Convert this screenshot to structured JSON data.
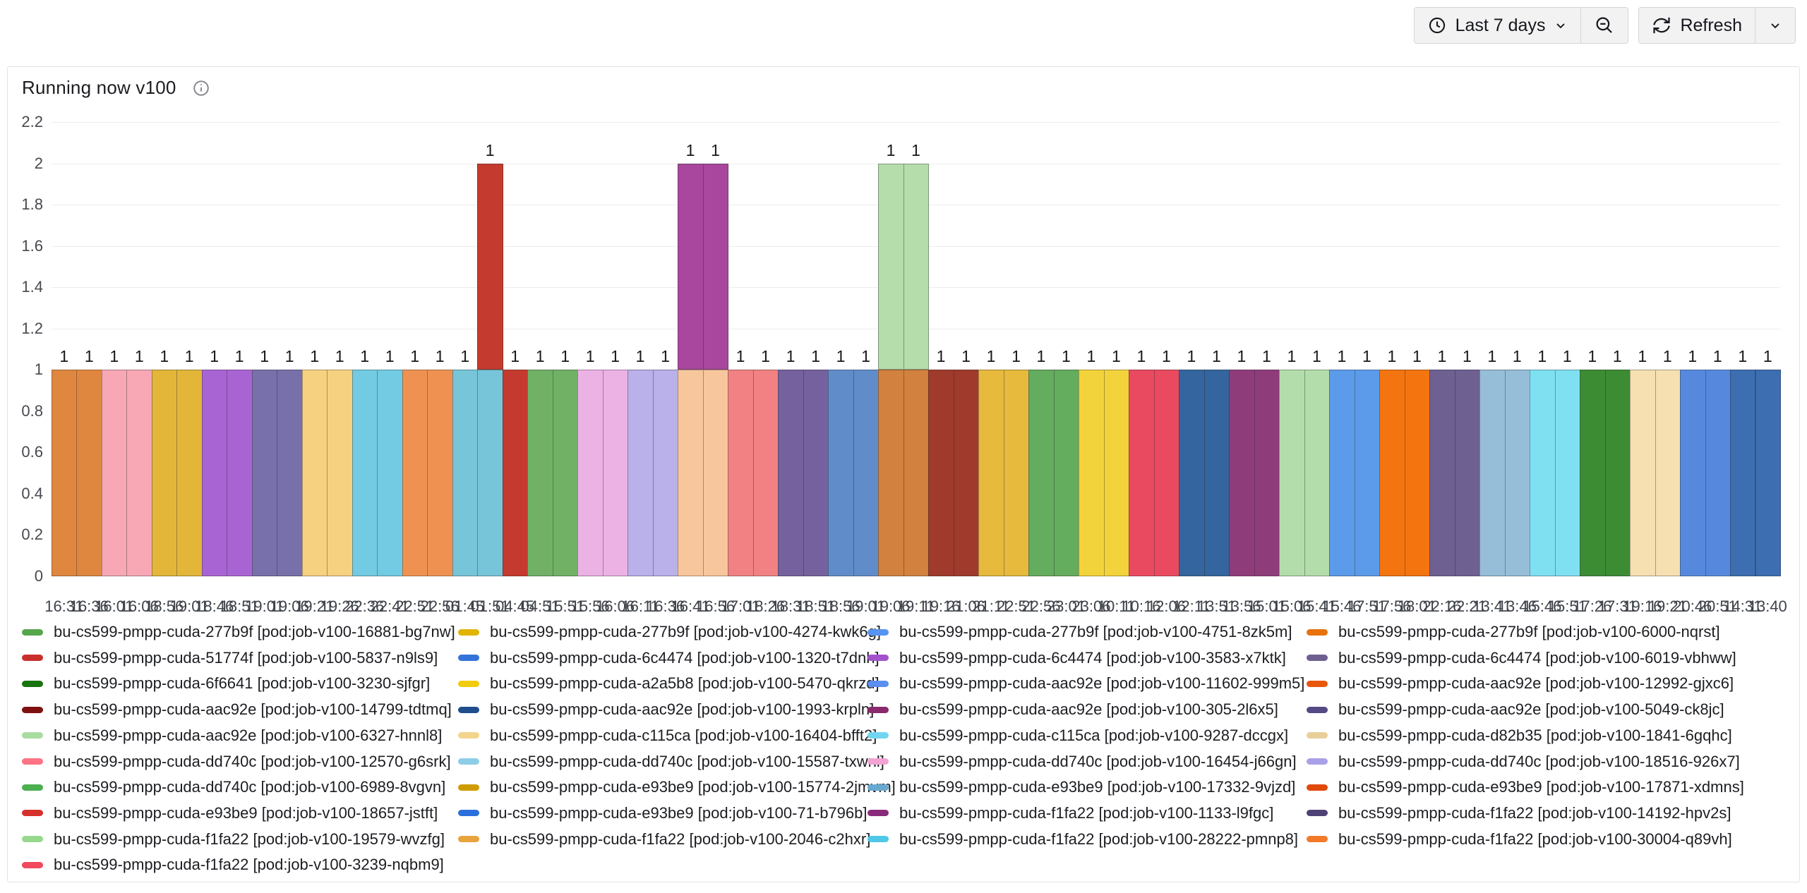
{
  "toolbar": {
    "time_range_label": "Last 7 days",
    "refresh_label": "Refresh"
  },
  "panel": {
    "title": "Running now v100"
  },
  "chart_data": {
    "type": "bar",
    "stacked": true,
    "title": "Running now v100",
    "ylabel": "",
    "xlabel": "",
    "ylim": [
      0,
      2.2
    ],
    "y_ticks": [
      "0",
      "0.2",
      "0.4",
      "0.6",
      "0.8",
      "1",
      "1.2",
      "1.4",
      "1.6",
      "1.8",
      "2",
      "2.2"
    ],
    "grid": "horizontal",
    "legend_position": "bottom",
    "note": "69 time slots; every bar segment has value 1; five slots carry a second stacked segment (total 2): slot 18 red, slots 26-27 purple, slots 34-35 light-green. 74 segments = 37 series x 2 points.",
    "slots": [
      {
        "t": "16:31",
        "v": 1,
        "c": "#e0873f"
      },
      {
        "t": "16:36",
        "v": 1,
        "c": "#e0873f"
      },
      {
        "t": "16:01",
        "v": 1,
        "c": "#f7a8b4"
      },
      {
        "t": "16:06",
        "v": 1,
        "c": "#f7a8b4"
      },
      {
        "t": "18:56",
        "v": 1,
        "c": "#e3b63a"
      },
      {
        "t": "19:01",
        "v": 1,
        "c": "#e3b63a"
      },
      {
        "t": "18:46",
        "v": 1,
        "c": "#a964d4"
      },
      {
        "t": "18:51",
        "v": 1,
        "c": "#a964d4"
      },
      {
        "t": "19:01",
        "v": 1,
        "c": "#7770aa"
      },
      {
        "t": "19:06",
        "v": 1,
        "c": "#7770aa"
      },
      {
        "t": "19:21",
        "v": 1,
        "c": "#f6d180"
      },
      {
        "t": "19:26",
        "v": 1,
        "c": "#f6d180"
      },
      {
        "t": "22:36",
        "v": 1,
        "c": "#72cbe2"
      },
      {
        "t": "22:41",
        "v": 1,
        "c": "#72cbe2"
      },
      {
        "t": "22:51",
        "v": 1,
        "c": "#ef9251"
      },
      {
        "t": "22:56",
        "v": 1,
        "c": "#ef9251"
      },
      {
        "t": "01:45",
        "v": 1,
        "c": "#77c5d8"
      },
      {
        "t": "01:51",
        "v": 1,
        "c": "#77c5d8",
        "stack_v": 1,
        "stack_c": "#c53a2e"
      },
      {
        "t": "04:45",
        "v": 1,
        "c": "#c53a2e"
      },
      {
        "t": "04:51",
        "v": 1,
        "c": "#70b166"
      },
      {
        "t": "15:51",
        "v": 1,
        "c": "#70b166"
      },
      {
        "t": "15:56",
        "v": 1,
        "c": "#ecb2e4"
      },
      {
        "t": "16:06",
        "v": 1,
        "c": "#ecb2e4"
      },
      {
        "t": "16:11",
        "v": 1,
        "c": "#bab0ea"
      },
      {
        "t": "16:36",
        "v": 1,
        "c": "#bab0ea"
      },
      {
        "t": "16:41",
        "v": 1,
        "c": "#f8c69d",
        "stack_v": 1,
        "stack_c": "#a8479d"
      },
      {
        "t": "16:56",
        "v": 1,
        "c": "#f8c69d",
        "stack_v": 1,
        "stack_c": "#a8479d"
      },
      {
        "t": "17:01",
        "v": 1,
        "c": "#f18182"
      },
      {
        "t": "18:26",
        "v": 1,
        "c": "#f18182"
      },
      {
        "t": "18:31",
        "v": 1,
        "c": "#75619d"
      },
      {
        "t": "18:51",
        "v": 1,
        "c": "#75619d"
      },
      {
        "t": "18:56",
        "v": 1,
        "c": "#608cca"
      },
      {
        "t": "19:01",
        "v": 1,
        "c": "#608cca"
      },
      {
        "t": "19:06",
        "v": 1,
        "c": "#d2813e",
        "stack_v": 1,
        "stack_c": "#b5dcab"
      },
      {
        "t": "19:11",
        "v": 1,
        "c": "#d2813e",
        "stack_v": 1,
        "stack_c": "#b5dcab"
      },
      {
        "t": "19:16",
        "v": 1,
        "c": "#a03a2c"
      },
      {
        "t": "21:06",
        "v": 1,
        "c": "#a03a2c"
      },
      {
        "t": "21:11",
        "v": 1,
        "c": "#e7ba3e"
      },
      {
        "t": "22:51",
        "v": 1,
        "c": "#e7ba3e"
      },
      {
        "t": "22:56",
        "v": 1,
        "c": "#64ac5e"
      },
      {
        "t": "23:01",
        "v": 1,
        "c": "#64ac5e"
      },
      {
        "t": "23:06",
        "v": 1,
        "c": "#f3d33c"
      },
      {
        "t": "10:11",
        "v": 1,
        "c": "#f3d33c"
      },
      {
        "t": "10:16",
        "v": 1,
        "c": "#ea4a60"
      },
      {
        "t": "12:06",
        "v": 1,
        "c": "#ea4a60"
      },
      {
        "t": "12:11",
        "v": 1,
        "c": "#34659e"
      },
      {
        "t": "13:51",
        "v": 1,
        "c": "#34659e"
      },
      {
        "t": "13:56",
        "v": 1,
        "c": "#8f3c7a"
      },
      {
        "t": "15:01",
        "v": 1,
        "c": "#8f3c7a"
      },
      {
        "t": "15:06",
        "v": 1,
        "c": "#b4ddac"
      },
      {
        "t": "15:41",
        "v": 1,
        "c": "#b4ddac"
      },
      {
        "t": "15:46",
        "v": 1,
        "c": "#5c9bea"
      },
      {
        "t": "17:51",
        "v": 1,
        "c": "#5c9bea"
      },
      {
        "t": "17:56",
        "v": 1,
        "c": "#f47510"
      },
      {
        "t": "18:01",
        "v": 1,
        "c": "#f47510"
      },
      {
        "t": "22:16",
        "v": 1,
        "c": "#6f6092"
      },
      {
        "t": "22:21",
        "v": 1,
        "c": "#6f6092"
      },
      {
        "t": "13:41",
        "v": 1,
        "c": "#96bed9"
      },
      {
        "t": "13:46",
        "v": 1,
        "c": "#96bed9"
      },
      {
        "t": "15:46",
        "v": 1,
        "c": "#7fe0f2"
      },
      {
        "t": "15:51",
        "v": 1,
        "c": "#7fe0f2"
      },
      {
        "t": "17:26",
        "v": 1,
        "c": "#3c8c34"
      },
      {
        "t": "17:31",
        "v": 1,
        "c": "#3c8c34"
      },
      {
        "t": "19:16",
        "v": 1,
        "c": "#f6e0b2"
      },
      {
        "t": "19:21",
        "v": 1,
        "c": "#f6e0b2"
      },
      {
        "t": "20:46",
        "v": 1,
        "c": "#5689dd"
      },
      {
        "t": "20:51",
        "v": 1,
        "c": "#5689dd"
      },
      {
        "t": "14:31",
        "v": 1,
        "c": "#3d6eb2"
      },
      {
        "t": "13:40",
        "v": 1,
        "c": "#3d6eb2"
      }
    ],
    "legend": [
      {
        "label": "bu-cs599-pmpp-cuda-277b9f [pod:job-v100-16881-bg7nw]",
        "color": "#56a64b"
      },
      {
        "label": "bu-cs599-pmpp-cuda-277b9f [pod:job-v100-4274-kwk6g]",
        "color": "#e0b400"
      },
      {
        "label": "bu-cs599-pmpp-cuda-277b9f [pod:job-v100-4751-8zk5m]",
        "color": "#5794f2"
      },
      {
        "label": "bu-cs599-pmpp-cuda-277b9f [pod:job-v100-6000-nqrst]",
        "color": "#e8720c"
      },
      {
        "label": "bu-cs599-pmpp-cuda-51774f [pod:job-v100-5837-n9ls9]",
        "color": "#c9302c"
      },
      {
        "label": "bu-cs599-pmpp-cuda-6c4474 [pod:job-v100-1320-t7dnh]",
        "color": "#3274d9"
      },
      {
        "label": "bu-cs599-pmpp-cuda-6c4474 [pod:job-v100-3583-x7ktk]",
        "color": "#a352cc"
      },
      {
        "label": "bu-cs599-pmpp-cuda-6c4474 [pod:job-v100-6019-vbhww]",
        "color": "#6f5f91"
      },
      {
        "label": "bu-cs599-pmpp-cuda-6f6641 [pod:job-v100-3230-sjfgr]",
        "color": "#19730e"
      },
      {
        "label": "bu-cs599-pmpp-cuda-a2a5b8 [pod:job-v100-5470-qkrzd]",
        "color": "#f2cc0c"
      },
      {
        "label": "bu-cs599-pmpp-cuda-aac92e [pod:job-v100-11602-999m5]",
        "color": "#5b8ff0"
      },
      {
        "label": "bu-cs599-pmpp-cuda-aac92e [pod:job-v100-12992-gjxc6]",
        "color": "#e8570c"
      },
      {
        "label": "bu-cs599-pmpp-cuda-aac92e [pod:job-v100-14799-tdtmq]",
        "color": "#7f1010"
      },
      {
        "label": "bu-cs599-pmpp-cuda-aac92e [pod:job-v100-1993-krpln]",
        "color": "#1f4e8c"
      },
      {
        "label": "bu-cs599-pmpp-cuda-aac92e [pod:job-v100-305-2l6x5]",
        "color": "#8a2a6d"
      },
      {
        "label": "bu-cs599-pmpp-cuda-aac92e [pod:job-v100-5049-ck8jc]",
        "color": "#554a85"
      },
      {
        "label": "bu-cs599-pmpp-cuda-aac92e [pod:job-v100-6327-hnnl8]",
        "color": "#a9dca0"
      },
      {
        "label": "bu-cs599-pmpp-cuda-c115ca [pod:job-v100-16404-bfft2]",
        "color": "#f3d48c"
      },
      {
        "label": "bu-cs599-pmpp-cuda-c115ca [pod:job-v100-9287-dccgx]",
        "color": "#70d6f0"
      },
      {
        "label": "bu-cs599-pmpp-cuda-d82b35 [pod:job-v100-1841-6gqhc]",
        "color": "#e8cf9a"
      },
      {
        "label": "bu-cs599-pmpp-cuda-dd740c [pod:job-v100-12570-g6srk]",
        "color": "#ff7383"
      },
      {
        "label": "bu-cs599-pmpp-cuda-dd740c [pod:job-v100-15587-txwnl]",
        "color": "#8ecde8"
      },
      {
        "label": "bu-cs599-pmpp-cuda-dd740c [pod:job-v100-16454-j66gn]",
        "color": "#f2a3d3"
      },
      {
        "label": "bu-cs599-pmpp-cuda-dd740c [pod:job-v100-18516-926x7]",
        "color": "#a8a0e8"
      },
      {
        "label": "bu-cs599-pmpp-cuda-dd740c [pod:job-v100-6989-8vgvn]",
        "color": "#4caf50"
      },
      {
        "label": "bu-cs599-pmpp-cuda-e93be9 [pod:job-v100-15774-2jmvm]",
        "color": "#cf9c00"
      },
      {
        "label": "bu-cs599-pmpp-cuda-e93be9 [pod:job-v100-17332-9vjzd]",
        "color": "#68a9d0"
      },
      {
        "label": "bu-cs599-pmpp-cuda-e93be9 [pod:job-v100-17871-xdmns]",
        "color": "#e0490c"
      },
      {
        "label": "bu-cs599-pmpp-cuda-e93be9 [pod:job-v100-18657-jstft]",
        "color": "#d6302c"
      },
      {
        "label": "bu-cs599-pmpp-cuda-e93be9 [pod:job-v100-71-b796b]",
        "color": "#2a6fdb"
      },
      {
        "label": "bu-cs599-pmpp-cuda-f1fa22 [pod:job-v100-1133-l9fgc]",
        "color": "#8a2a7a"
      },
      {
        "label": "bu-cs599-pmpp-cuda-f1fa22 [pod:job-v100-14192-hpv2s]",
        "color": "#4e4176"
      },
      {
        "label": "bu-cs599-pmpp-cuda-f1fa22 [pod:job-v100-19579-wvzfg]",
        "color": "#96d98d"
      },
      {
        "label": "bu-cs599-pmpp-cuda-f1fa22 [pod:job-v100-2046-c2hxr]",
        "color": "#e8a33d"
      },
      {
        "label": "bu-cs599-pmpp-cuda-f1fa22 [pod:job-v100-28222-pmnp8]",
        "color": "#4fc8e8"
      },
      {
        "label": "bu-cs599-pmpp-cuda-f1fa22 [pod:job-v100-30004-q89vh]",
        "color": "#f27a2a"
      },
      {
        "label": "bu-cs599-pmpp-cuda-f1fa22 [pod:job-v100-3239-nqbm9]",
        "color": "#f2495c"
      }
    ]
  }
}
